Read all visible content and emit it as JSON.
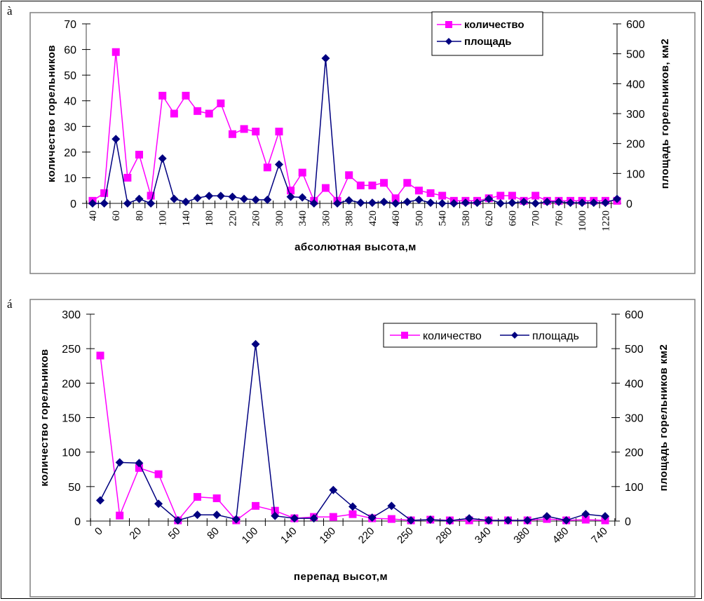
{
  "panels": {
    "a_letter": "à",
    "b_letter": "á"
  },
  "colors": {
    "count": "#ff00ff",
    "area": "#000080"
  },
  "chart_data": [
    {
      "id": "chart-a",
      "type": "line",
      "xlabel": "абсолютная высота,м",
      "ylabel": "количество горельников",
      "y2label": "площадь горельников, км2",
      "ylim": [
        0,
        70
      ],
      "y2lim": [
        0,
        600
      ],
      "yticks": [
        0,
        10,
        20,
        30,
        40,
        50,
        60,
        70
      ],
      "y2ticks": [
        0,
        100,
        200,
        300,
        400,
        500,
        600
      ],
      "legend_position": "top-right",
      "legend": [
        "количество",
        "площадь"
      ],
      "tick_labels": [
        "40",
        "60",
        "80",
        "100",
        "140",
        "180",
        "220",
        "260",
        "300",
        "340",
        "360",
        "380",
        "420",
        "460",
        "500",
        "540",
        "580",
        "620",
        "660",
        "700",
        "760",
        "1000",
        "1220"
      ],
      "label_every": 2,
      "n_categories": 46,
      "series": [
        {
          "name": "количество",
          "axis": "left",
          "marker": "square",
          "values": [
            1,
            4,
            59,
            10,
            19,
            3,
            42,
            35,
            42,
            36,
            35,
            39,
            27,
            29,
            28,
            14,
            28,
            5,
            12,
            1,
            6,
            1,
            11,
            7,
            7,
            8,
            2,
            8,
            5,
            4,
            3,
            1,
            1,
            1,
            2,
            3,
            3,
            1,
            3,
            1,
            1,
            1,
            1,
            1,
            1,
            1
          ]
        },
        {
          "name": "площадь",
          "axis": "right",
          "marker": "diamond",
          "values": [
            0,
            0,
            215,
            0,
            15,
            0,
            150,
            15,
            5,
            18,
            25,
            25,
            22,
            15,
            12,
            12,
            130,
            22,
            20,
            0,
            485,
            0,
            10,
            2,
            2,
            5,
            0,
            5,
            12,
            2,
            0,
            0,
            2,
            2,
            15,
            0,
            2,
            5,
            0,
            5,
            5,
            2,
            2,
            2,
            2,
            15
          ]
        }
      ]
    },
    {
      "id": "chart-b",
      "type": "line",
      "xlabel": "перепад высот,м",
      "ylabel": "количество горельников",
      "y2label": "площадь горельников км2",
      "ylim": [
        0,
        300
      ],
      "y2lim": [
        0,
        600
      ],
      "yticks": [
        0,
        50,
        100,
        150,
        200,
        250,
        300
      ],
      "y2ticks": [
        0,
        100,
        200,
        300,
        400,
        500,
        600
      ],
      "legend_position": "top-right",
      "legend": [
        "количество",
        "площадь"
      ],
      "tick_labels": [
        "0",
        "20",
        "50",
        "80",
        "100",
        "140",
        "180",
        "220",
        "250",
        "280",
        "340",
        "380",
        "480",
        "740"
      ],
      "label_every": 2,
      "n_categories": 27,
      "series": [
        {
          "name": "количество",
          "axis": "left",
          "marker": "square",
          "values": [
            240,
            8,
            77,
            68,
            1,
            35,
            33,
            1,
            22,
            15,
            4,
            6,
            6,
            10,
            4,
            3,
            1,
            2,
            1,
            1,
            1,
            1,
            1,
            3,
            1,
            2,
            1
          ]
        },
        {
          "name": "площадь",
          "axis": "right",
          "marker": "diamond",
          "values": [
            60,
            170,
            168,
            50,
            2,
            18,
            18,
            5,
            513,
            15,
            8,
            8,
            90,
            42,
            10,
            44,
            2,
            4,
            1,
            8,
            2,
            2,
            2,
            14,
            2,
            20,
            14
          ]
        }
      ]
    }
  ]
}
